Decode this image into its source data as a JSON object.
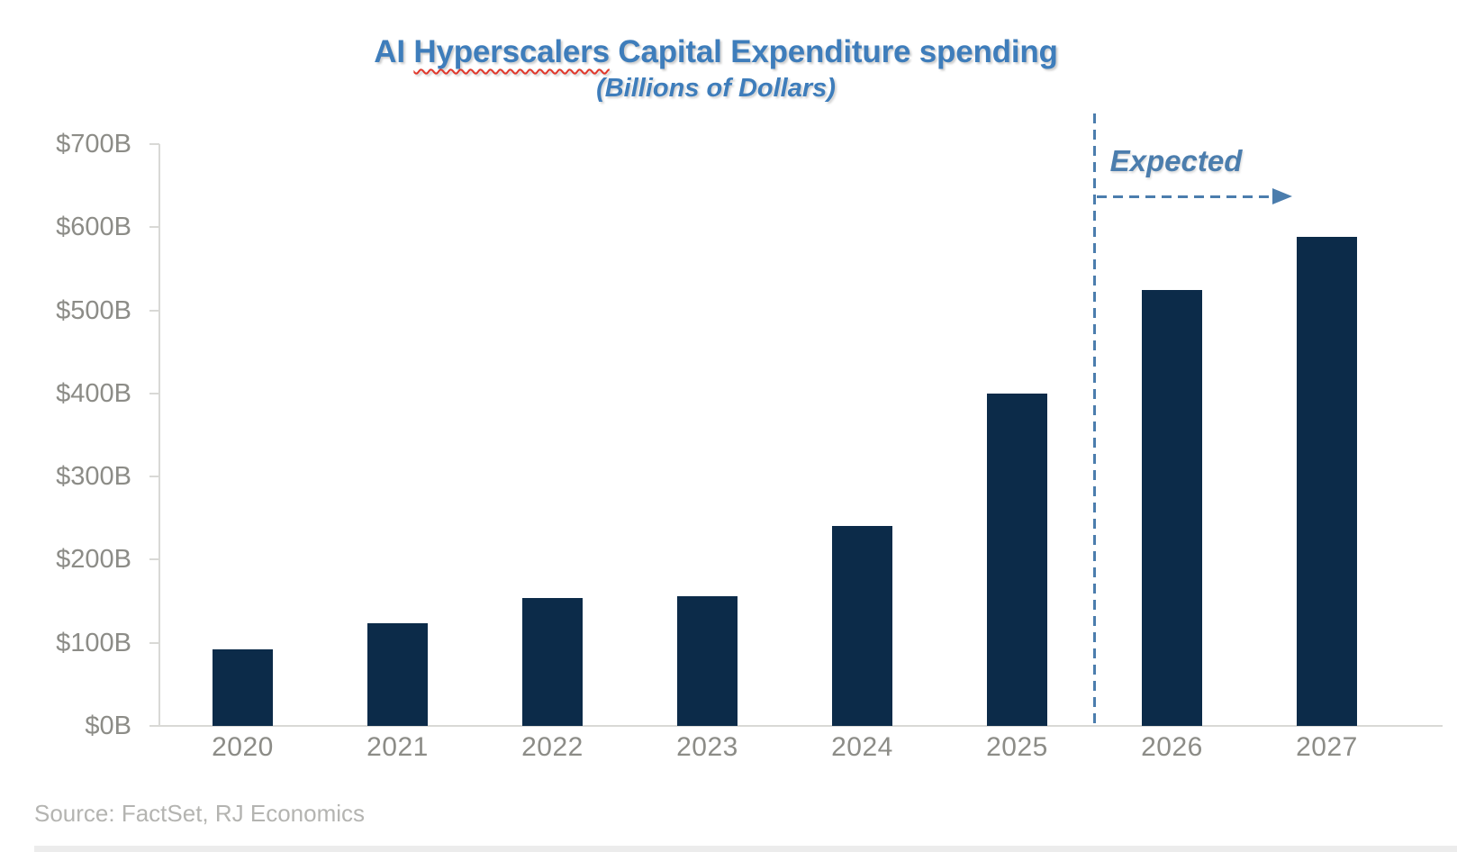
{
  "title": {
    "prefix": "AI ",
    "misspelled_word": "Hyperscalers",
    "suffix": " Capital Expenditure spending",
    "subtitle": "(Billions of Dollars)"
  },
  "annotation": {
    "label": "Expected"
  },
  "source": {
    "text": "Source: FactSet, RJ Economics"
  },
  "colors": {
    "barNavy": "#0c2b49",
    "titleBlue": "#3e7dbb",
    "annBlue": "#4b7dad",
    "squiggleRed": "#e0372b",
    "axisGray": "#d9d9d6",
    "labelGray": "#8c8c87",
    "sourceGray": "#b4b4b1"
  },
  "chart_data": {
    "type": "bar",
    "title": "AI Hyperscalers Capital Expenditure spending",
    "subtitle": "(Billions of Dollars)",
    "unit": "billions of US dollars",
    "categories": [
      "2020",
      "2021",
      "2022",
      "2023",
      "2024",
      "2025",
      "2026",
      "2027"
    ],
    "values": [
      92,
      124,
      154,
      156,
      241,
      400,
      524,
      588
    ],
    "xlabel": "",
    "ylabel": "",
    "ylim": [
      0,
      700
    ],
    "ytick_step": 100,
    "ytick_labels": [
      "$0B",
      "$100B",
      "$200B",
      "$300B",
      "$400B",
      "$500B",
      "$600B",
      "$700B"
    ],
    "grid": false,
    "legend": "none",
    "bar_color": "#0c2b49",
    "annotations": [
      {
        "text": "Expected",
        "style": "dashed vertical divider between 2025 and 2026 with dashed right arrow",
        "applies_to": [
          "2026",
          "2027"
        ]
      }
    ]
  }
}
